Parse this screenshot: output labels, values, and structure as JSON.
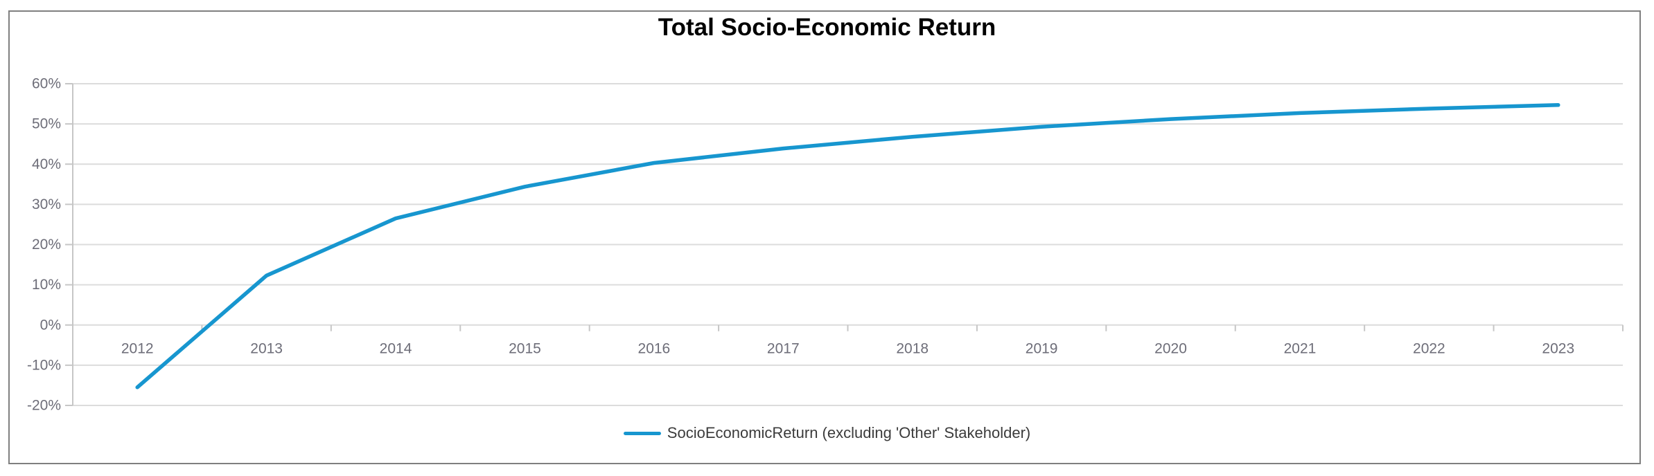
{
  "window": {
    "background_color": "#ffffff",
    "border_color": "#7f7f7f"
  },
  "chart_data": {
    "type": "line",
    "title": "Total Socio-Economic Return",
    "categories": [
      "2012",
      "2013",
      "2014",
      "2015",
      "2016",
      "2017",
      "2018",
      "2019",
      "2020",
      "2021",
      "2022",
      "2023"
    ],
    "series": [
      {
        "name": "SocioEconomicReturn (excluding 'Other' Stakeholder)",
        "values": [
          -15.5,
          12.3,
          26.5,
          34.4,
          40.3,
          43.9,
          46.8,
          49.3,
          51.2,
          52.7,
          53.8,
          54.7
        ],
        "color": "#1796cf"
      }
    ],
    "xlabel": "",
    "ylabel": "",
    "ylim": [
      -20,
      60
    ],
    "y_tick_step": 10,
    "y_tick_labels": [
      "60%",
      "50%",
      "40%",
      "30%",
      "20%",
      "10%",
      "0%",
      "-10%",
      "-20%"
    ],
    "grid": "horizontal",
    "legend_position": "bottom",
    "legend": [
      "SocioEconomicReturn (excluding 'Other' Stakeholder)"
    ]
  },
  "style": {
    "gridline_color": "#dcdcdc",
    "axis_color": "#c6c6c6",
    "tick_label_color": "#6d6d78",
    "title_color": "#000000",
    "legend_text_color": "#3b3b3b",
    "line_color": "#1796cf"
  }
}
